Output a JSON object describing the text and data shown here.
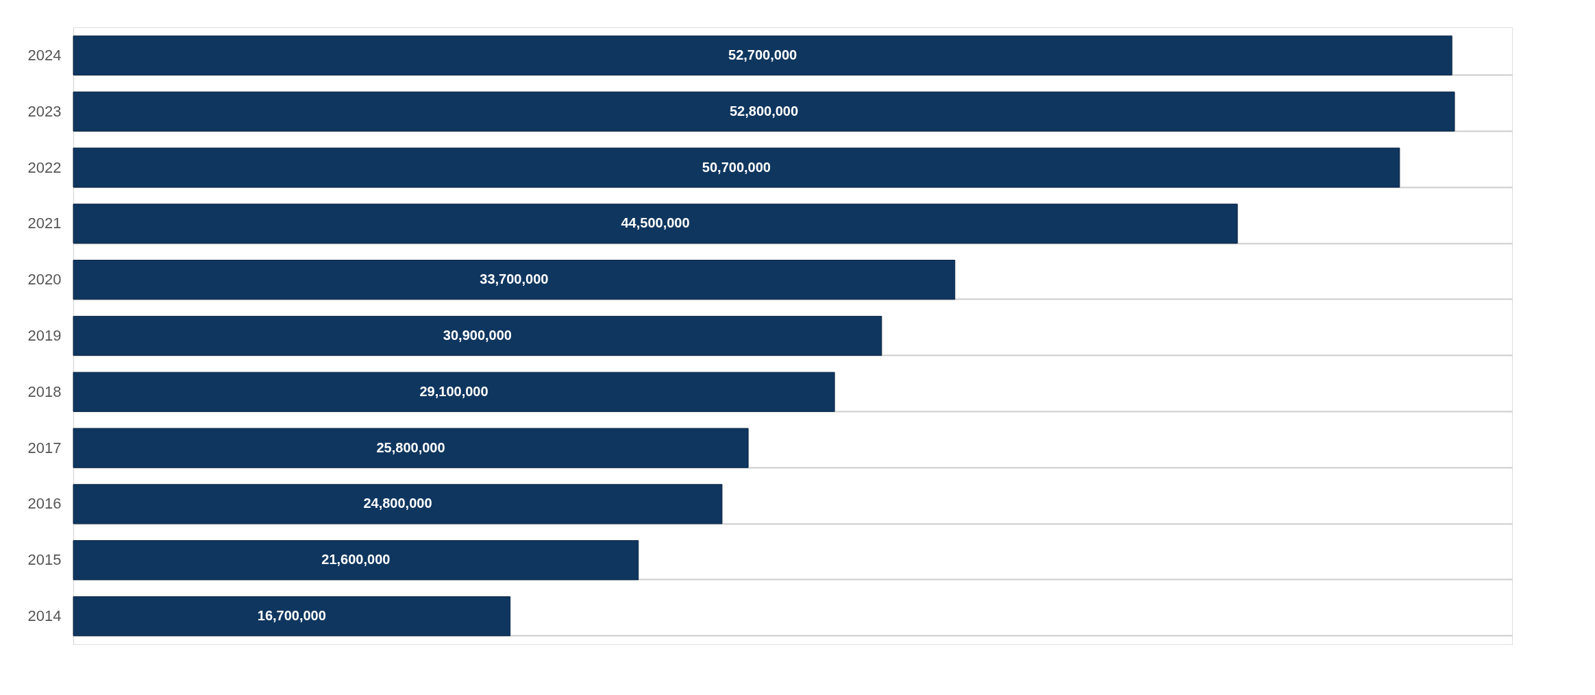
{
  "chart_data": {
    "type": "bar",
    "orientation": "horizontal",
    "categories": [
      "2024",
      "2023",
      "2022",
      "2021",
      "2020",
      "2019",
      "2018",
      "2017",
      "2016",
      "2015",
      "2014"
    ],
    "values": [
      52700000,
      52800000,
      50700000,
      44500000,
      33700000,
      30900000,
      29100000,
      25800000,
      24800000,
      21600000,
      16700000
    ],
    "value_labels": [
      "52,700,000",
      "52,800,000",
      "50,700,000",
      "44,500,000",
      "33,700,000",
      "30,900,000",
      "29,100,000",
      "25,800,000",
      "24,800,000",
      "21,600,000",
      "16,700,000"
    ],
    "color": "#0f365f",
    "grid": true
  }
}
